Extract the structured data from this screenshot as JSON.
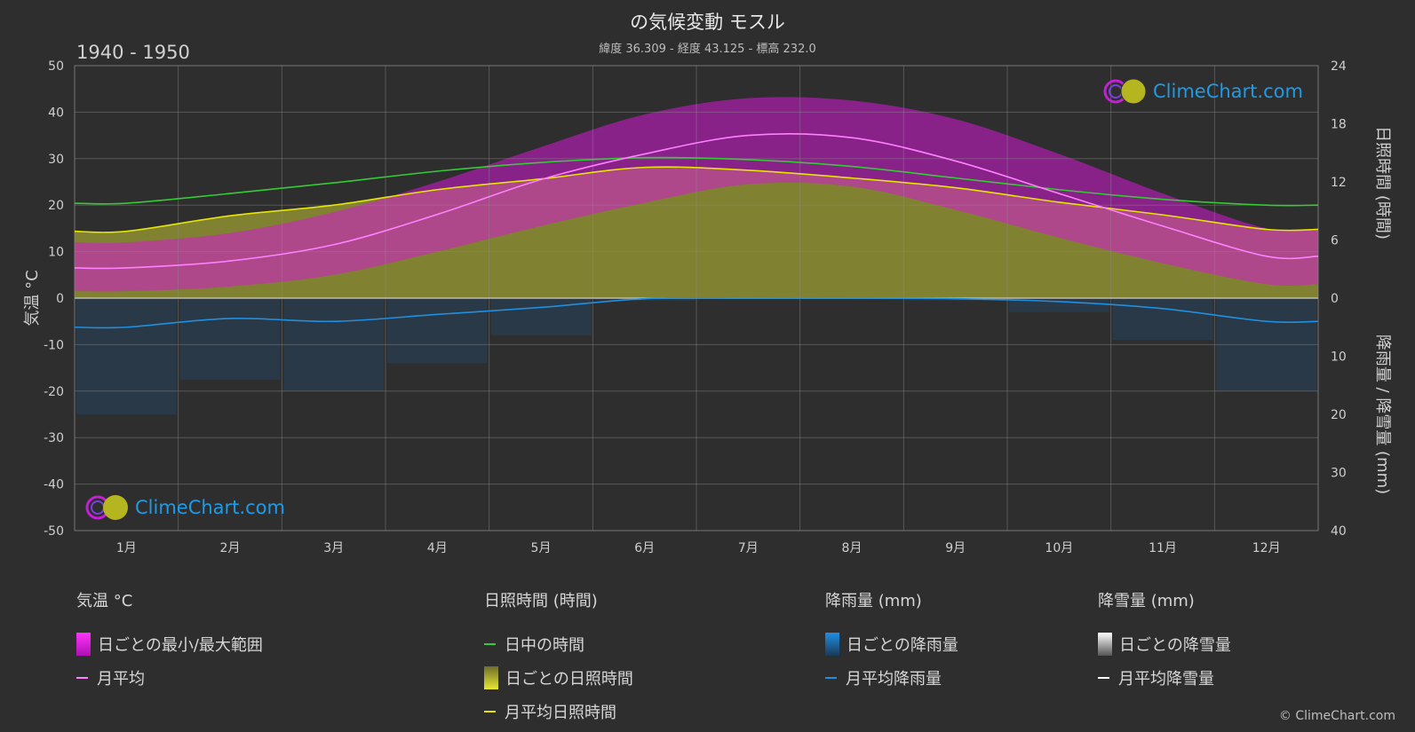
{
  "header": {
    "title": "の気候変動 モスル",
    "subtitle": "緯度 36.309 - 経度 43.125 - 標高 232.0",
    "period": "1940 - 1950"
  },
  "logo_text": "ClimeChart.com",
  "copyright": "© ClimeChart.com",
  "axes": {
    "left_label": "気温 °C",
    "right_top_label": "日照時間 (時間)",
    "right_bottom_label": "降雨量 / 降雪量 (mm)",
    "left_ticks": [
      "50",
      "40",
      "30",
      "20",
      "10",
      "0",
      "-10",
      "-20",
      "-30",
      "-40",
      "-50"
    ],
    "right_top_ticks": [
      "24",
      "18",
      "12",
      "6",
      "0"
    ],
    "right_bottom_ticks": [
      "10",
      "20",
      "30",
      "40"
    ]
  },
  "chart_data": {
    "type": "line",
    "categories": [
      "1月",
      "2月",
      "3月",
      "4月",
      "5月",
      "6月",
      "7月",
      "8月",
      "9月",
      "10月",
      "11月",
      "12月"
    ],
    "temperature_ylim": [
      -50,
      50
    ],
    "sunshine_ylim": [
      0,
      24
    ],
    "precip_ylim": [
      0,
      40
    ],
    "series": [
      {
        "name": "月平均",
        "group": "temperature",
        "values": [
          6.5,
          8.0,
          11.5,
          18.0,
          25.5,
          31.0,
          35.0,
          34.5,
          29.5,
          22.5,
          15.5,
          9.0
        ]
      },
      {
        "name": "日中の時間",
        "group": "sunshine",
        "values": [
          9.8,
          10.8,
          11.9,
          13.1,
          14.0,
          14.5,
          14.3,
          13.6,
          12.4,
          11.2,
          10.2,
          9.6
        ]
      },
      {
        "name": "月平均日照時間",
        "group": "sunshine",
        "values": [
          6.9,
          8.5,
          9.6,
          11.2,
          12.3,
          13.5,
          13.2,
          12.4,
          11.4,
          9.9,
          8.6,
          7.1
        ]
      },
      {
        "name": "月平均降雨量",
        "group": "precip",
        "values": [
          5.0,
          3.5,
          4.0,
          2.8,
          1.6,
          0.1,
          0.0,
          0.0,
          0.1,
          0.6,
          1.8,
          4.0
        ]
      },
      {
        "name": "月平均降雪量",
        "group": "precip",
        "values": [
          0,
          0,
          0,
          0,
          0,
          0,
          0,
          0,
          0,
          0,
          0,
          0
        ]
      }
    ],
    "daily_range": {
      "name": "日ごとの最小/最大範囲",
      "min": [
        1.5,
        2.5,
        5.0,
        10.0,
        15.5,
        20.5,
        24.5,
        24.0,
        19.0,
        13.0,
        7.5,
        3.0
      ],
      "max": [
        12.0,
        14.0,
        18.5,
        25.0,
        32.5,
        39.5,
        43.0,
        42.5,
        38.5,
        31.0,
        22.5,
        15.0
      ]
    },
    "legend": [
      {
        "heading": "気温 °C",
        "items": [
          "日ごとの最小/最大範囲",
          "月平均"
        ]
      },
      {
        "heading": "日照時間 (時間)",
        "items": [
          "日中の時間",
          "日ごとの日照時間",
          "月平均日照時間"
        ]
      },
      {
        "heading": "降雨量 (mm)",
        "items": [
          "日ごとの降雨量",
          "月平均降雨量"
        ]
      },
      {
        "heading": "降雪量 (mm)",
        "items": [
          "日ごとの降雪量",
          "月平均降雪量"
        ]
      }
    ]
  },
  "colors": {
    "temp_range": "#d41ad4",
    "temp_mean": "#ff80ff",
    "daylight": "#33cc33",
    "sunshine_fill": "#8f8f33",
    "sunshine_mean": "#e6e600",
    "rain": "#1e6fbf",
    "rain_mean": "#1f8fe0",
    "snow_mean": "#ffffff"
  }
}
